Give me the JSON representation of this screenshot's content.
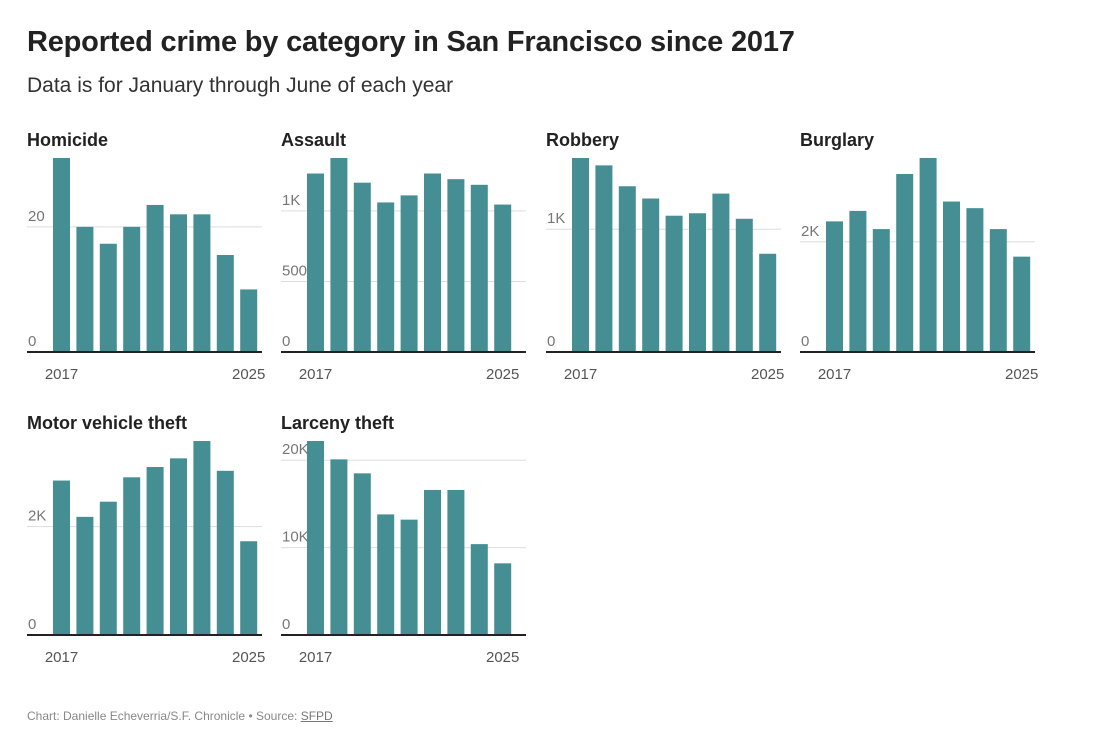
{
  "title": "Reported crime by category in San Francisco since 2017",
  "subtitle": "Data is for January through June of each year",
  "footer": {
    "credit": "Chart: Danielle Echeverria/S.F. Chronicle",
    "separator": "•",
    "source_prefix": "Source:",
    "source_link": "SFPD"
  },
  "colors": {
    "bar": "#458f94",
    "gridline": "#dddddd",
    "baseline": "#222222"
  },
  "chart_data": [
    {
      "type": "bar",
      "title": "Homicide",
      "categories": [
        "2017",
        "2018",
        "2019",
        "2020",
        "2021",
        "2022",
        "2023",
        "2024",
        "2025"
      ],
      "x_tick_labels": [
        "2017",
        "2025"
      ],
      "values": [
        31,
        20,
        17.3,
        20,
        23.5,
        22,
        22,
        15.5,
        10
      ],
      "ylim": [
        0,
        31
      ],
      "y_ticks": [
        {
          "value": 0,
          "label": "0"
        },
        {
          "value": 20,
          "label": "20"
        }
      ]
    },
    {
      "type": "bar",
      "title": "Assault",
      "categories": [
        "2017",
        "2018",
        "2019",
        "2020",
        "2021",
        "2022",
        "2023",
        "2024",
        "2025"
      ],
      "x_tick_labels": [
        "2017",
        "2025"
      ],
      "values": [
        1265,
        1375,
        1200,
        1060,
        1110,
        1265,
        1225,
        1185,
        1045
      ],
      "ylim": [
        0,
        1375
      ],
      "y_ticks": [
        {
          "value": 0,
          "label": "0"
        },
        {
          "value": 500,
          "label": "500"
        },
        {
          "value": 1000,
          "label": "1K"
        }
      ]
    },
    {
      "type": "bar",
      "title": "Robbery",
      "categories": [
        "2017",
        "2018",
        "2019",
        "2020",
        "2021",
        "2022",
        "2023",
        "2024",
        "2025"
      ],
      "x_tick_labels": [
        "2017",
        "2025"
      ],
      "values": [
        1580,
        1520,
        1350,
        1250,
        1110,
        1130,
        1290,
        1085,
        800
      ],
      "ylim": [
        0,
        1580
      ],
      "y_ticks": [
        {
          "value": 0,
          "label": "0"
        },
        {
          "value": 1000,
          "label": "1K"
        }
      ]
    },
    {
      "type": "bar",
      "title": "Burglary",
      "categories": [
        "2017",
        "2018",
        "2019",
        "2020",
        "2021",
        "2022",
        "2023",
        "2024",
        "2025"
      ],
      "x_tick_labels": [
        "2017",
        "2025"
      ],
      "values": [
        2370,
        2560,
        2230,
        3230,
        3520,
        2730,
        2610,
        2230,
        1730
      ],
      "ylim": [
        0,
        3520
      ],
      "y_ticks": [
        {
          "value": 0,
          "label": "0"
        },
        {
          "value": 2000,
          "label": "2K"
        }
      ]
    },
    {
      "type": "bar",
      "title": "Motor vehicle theft",
      "categories": [
        "2017",
        "2018",
        "2019",
        "2020",
        "2021",
        "2022",
        "2023",
        "2024",
        "2025"
      ],
      "x_tick_labels": [
        "2017",
        "2025"
      ],
      "values": [
        2850,
        2180,
        2460,
        2910,
        3100,
        3260,
        3580,
        3030,
        1730
      ],
      "ylim": [
        0,
        3580
      ],
      "y_ticks": [
        {
          "value": 0,
          "label": "0"
        },
        {
          "value": 2000,
          "label": "2K"
        }
      ]
    },
    {
      "type": "bar",
      "title": "Larceny theft",
      "categories": [
        "2017",
        "2018",
        "2019",
        "2020",
        "2021",
        "2022",
        "2023",
        "2024",
        "2025"
      ],
      "x_tick_labels": [
        "2017",
        "2025"
      ],
      "values": [
        22200,
        20100,
        18500,
        13800,
        13200,
        16600,
        16600,
        10400,
        8200
      ],
      "ylim": [
        0,
        22200
      ],
      "y_ticks": [
        {
          "value": 0,
          "label": "0"
        },
        {
          "value": 10000,
          "label": "10K"
        },
        {
          "value": 20000,
          "label": "20K"
        }
      ]
    }
  ]
}
